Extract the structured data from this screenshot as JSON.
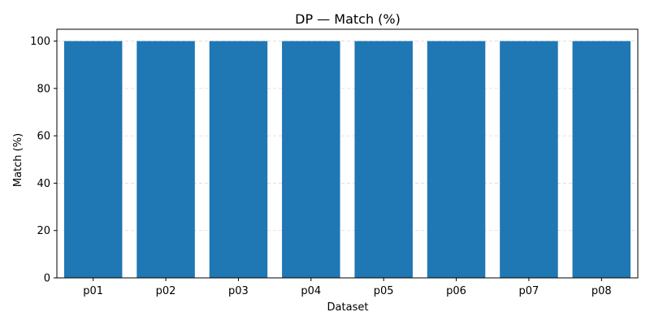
{
  "chart_data": {
    "type": "bar",
    "title": "DP — Match (%)",
    "xlabel": "Dataset",
    "ylabel": "Match (%)",
    "categories": [
      "p01",
      "p02",
      "p03",
      "p04",
      "p05",
      "p06",
      "p07",
      "p08"
    ],
    "values": [
      100,
      100,
      100,
      100,
      100,
      100,
      100,
      100
    ],
    "ylim": [
      0,
      105
    ],
    "yticks": [
      0,
      20,
      40,
      60,
      80,
      100
    ],
    "grid": "y-dashed",
    "legend": "none",
    "bar_color": "#1f77b4",
    "grid_color": "#d9d9d9"
  }
}
